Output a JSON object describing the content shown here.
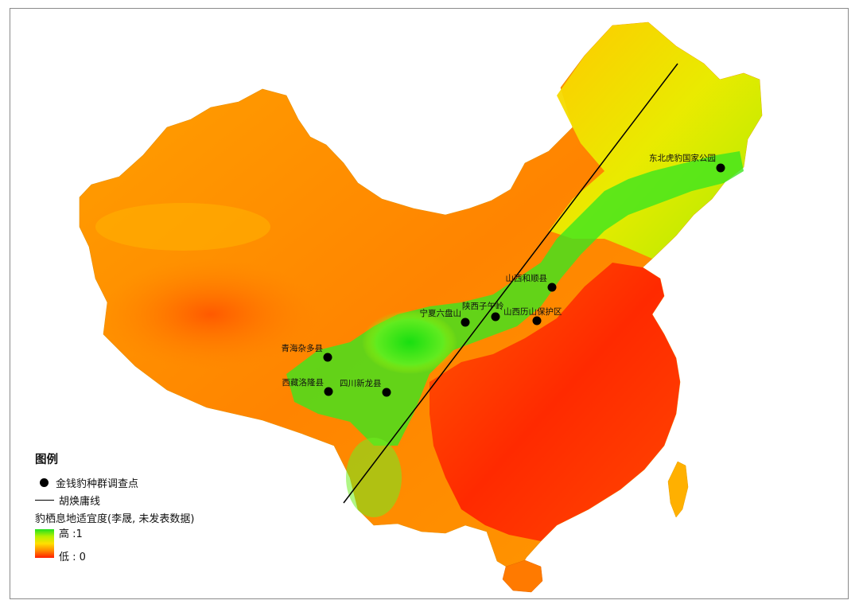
{
  "legend": {
    "title": "图例",
    "survey_points_label": "金钱豹种群调查点",
    "hu_line_label": "胡焕庸线",
    "ramp_title": "豹栖息地适宜度(李晟, 未发表数据)",
    "ramp_high": "高 :1",
    "ramp_low": "低 : 0"
  },
  "survey_points": [
    {
      "label": "东北虎豹国家公园"
    },
    {
      "label": "山西和顺县"
    },
    {
      "label": "宁夏六盘山"
    },
    {
      "label": "陕西子午岭"
    },
    {
      "label": "山西历山保护区"
    },
    {
      "label": "青海杂多县"
    },
    {
      "label": "西藏洛隆县"
    },
    {
      "label": "四川新龙县"
    }
  ],
  "colors": {
    "high": "#20e020",
    "mid": "#ffe000",
    "low": "#ff1e00",
    "hu_line": "#000000",
    "point": "#000000"
  }
}
